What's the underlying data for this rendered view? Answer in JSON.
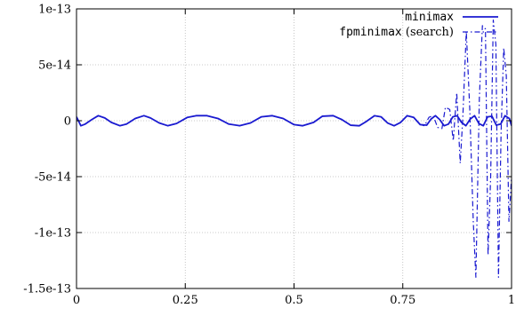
{
  "chart_data": {
    "type": "line",
    "title": "",
    "xlabel": "",
    "ylabel": "",
    "xlim": [
      0,
      1
    ],
    "ylim": [
      -1.5e-13,
      1e-13
    ],
    "grid": true,
    "legend_position": "top-right",
    "x_ticks": [
      {
        "value": 0,
        "label": "0"
      },
      {
        "value": 0.25,
        "label": "0.25"
      },
      {
        "value": 0.5,
        "label": "0.5"
      },
      {
        "value": 0.75,
        "label": "0.75"
      },
      {
        "value": 1,
        "label": "1"
      }
    ],
    "y_ticks": [
      {
        "value": 1e-13,
        "label": "1e-13"
      },
      {
        "value": 5e-14,
        "label": "5e-14"
      },
      {
        "value": 0,
        "label": "0"
      },
      {
        "value": -5e-14,
        "label": "-5e-14"
      },
      {
        "value": -1e-13,
        "label": "-1e-13"
      },
      {
        "value": -1.5e-13,
        "label": "-1.5e-13"
      }
    ],
    "series": [
      {
        "name": "minimax",
        "name_mono": "minimax",
        "name_suffix": "",
        "color": "#1a1ad0",
        "style": "solid",
        "x": [
          0,
          0.01,
          0.02,
          0.035,
          0.05,
          0.065,
          0.08,
          0.1,
          0.115,
          0.135,
          0.155,
          0.17,
          0.19,
          0.21,
          0.23,
          0.255,
          0.275,
          0.3,
          0.325,
          0.35,
          0.375,
          0.4,
          0.425,
          0.45,
          0.475,
          0.5,
          0.52,
          0.545,
          0.565,
          0.59,
          0.61,
          0.63,
          0.65,
          0.665,
          0.685,
          0.7,
          0.715,
          0.73,
          0.745,
          0.76,
          0.775,
          0.79,
          0.805,
          0.815,
          0.825,
          0.835,
          0.845,
          0.855,
          0.865,
          0.875,
          0.885,
          0.895,
          0.905,
          0.915,
          0.925,
          0.935,
          0.945,
          0.955,
          0.965,
          0.975,
          0.985,
          0.995,
          1.0
        ],
        "y": [
          3.5e-15,
          -4.5e-15,
          -3e-15,
          1e-15,
          4.5e-15,
          2.5e-15,
          -1.5e-15,
          -4.5e-15,
          -3e-15,
          2e-15,
          4.5e-15,
          2.5e-15,
          -2e-15,
          -4.5e-15,
          -2.5e-15,
          3e-15,
          4.5e-15,
          4.5e-15,
          2e-15,
          -3e-15,
          -4.5e-15,
          -2e-15,
          3.5e-15,
          4.5e-15,
          2e-15,
          -3.5e-15,
          -4.5e-15,
          -1.5e-15,
          4e-15,
          4.5e-15,
          1e-15,
          -4e-15,
          -4.5e-15,
          -1e-15,
          4.5e-15,
          3.5e-15,
          -2e-15,
          -4.5e-15,
          -1.5e-15,
          4.5e-15,
          3e-15,
          -3.5e-15,
          -4e-15,
          1.5e-15,
          4.5e-15,
          1e-15,
          -4.5e-15,
          -3e-15,
          3.5e-15,
          4.5e-15,
          -1.5e-15,
          -4.5e-15,
          1.5e-15,
          4.5e-15,
          -2.5e-15,
          -4.5e-15,
          3.5e-15,
          4e-15,
          -4e-15,
          -3e-15,
          4.5e-15,
          2e-15,
          -4.5e-15
        ]
      },
      {
        "name": "fpminimax (search)",
        "name_mono": "fpminimax",
        "name_suffix": " (search)",
        "color": "#1a1ad0",
        "style": "dashdot",
        "x": [
          0,
          0.01,
          0.02,
          0.035,
          0.05,
          0.065,
          0.08,
          0.1,
          0.115,
          0.135,
          0.155,
          0.17,
          0.19,
          0.21,
          0.23,
          0.255,
          0.275,
          0.3,
          0.325,
          0.35,
          0.375,
          0.4,
          0.425,
          0.45,
          0.475,
          0.5,
          0.52,
          0.545,
          0.565,
          0.59,
          0.61,
          0.63,
          0.65,
          0.665,
          0.685,
          0.7,
          0.715,
          0.73,
          0.745,
          0.76,
          0.775,
          0.79,
          0.8,
          0.81,
          0.82,
          0.83,
          0.84,
          0.848,
          0.858,
          0.866,
          0.874,
          0.882,
          0.888,
          0.896,
          0.904,
          0.912,
          0.918,
          0.926,
          0.933,
          0.94,
          0.946,
          0.952,
          0.958,
          0.964,
          0.97,
          0.976,
          0.982,
          0.988,
          0.994,
          1.0
        ],
        "y": [
          3.5e-15,
          -4.5e-15,
          -3e-15,
          1e-15,
          4.5e-15,
          2.5e-15,
          -1.5e-15,
          -4.5e-15,
          -3e-15,
          2e-15,
          4.5e-15,
          2.5e-15,
          -2e-15,
          -4.5e-15,
          -2.5e-15,
          3e-15,
          4.5e-15,
          4.5e-15,
          2e-15,
          -3e-15,
          -4.5e-15,
          -2e-15,
          3.5e-15,
          4.5e-15,
          2e-15,
          -3.5e-15,
          -4.5e-15,
          -1.5e-15,
          4e-15,
          4.5e-15,
          1e-15,
          -4e-15,
          -4.5e-15,
          -1e-15,
          4.5e-15,
          3.5e-15,
          -2e-15,
          -4.5e-15,
          -1.5e-15,
          4.5e-15,
          3e-15,
          -3.5e-15,
          -4.5e-15,
          3e-15,
          4.5e-15,
          -6e-15,
          -7e-15,
          1.2e-14,
          1e-14,
          -1.8e-14,
          2.5e-14,
          -3.8e-14,
          3e-15,
          8e-14,
          1e-14,
          -9e-14,
          -1.4e-13,
          2e-14,
          8.5e-14,
          8.2e-14,
          -1.2e-13,
          -5e-14,
          9e-14,
          6.8e-14,
          -1.4e-13,
          -1e-14,
          6.5e-14,
          4e-14,
          -9e-14,
          -5e-14
        ]
      }
    ]
  }
}
